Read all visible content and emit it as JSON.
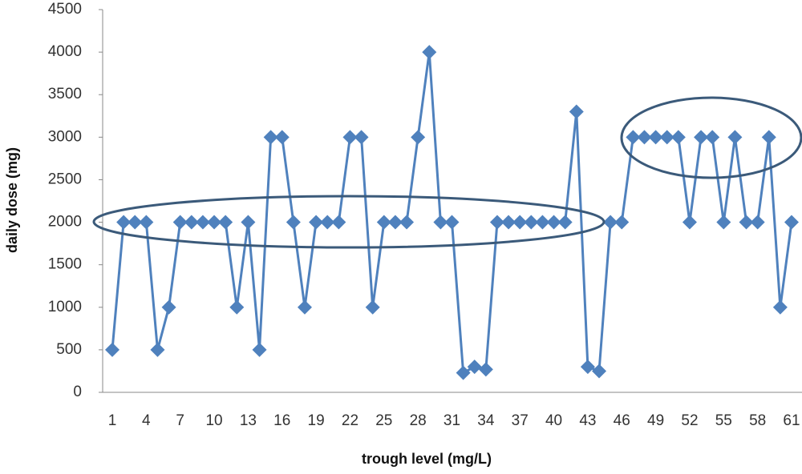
{
  "chart_data": {
    "type": "line",
    "x_label": "trough level (mg/L)",
    "y_label": "daily dose (mg)",
    "categories": [
      "1",
      null,
      null,
      "4",
      null,
      null,
      "7",
      null,
      null,
      "10",
      null,
      null,
      "13",
      null,
      null,
      "16",
      null,
      null,
      "19",
      null,
      null,
      "22",
      null,
      null,
      "25",
      null,
      null,
      "28",
      null,
      null,
      "31",
      null,
      null,
      "34",
      null,
      null,
      "37",
      null,
      null,
      "40",
      null,
      null,
      "43",
      null,
      null,
      "46",
      null,
      null,
      "49",
      null,
      null,
      "52",
      null,
      null,
      "55",
      null,
      null,
      "58",
      null,
      null,
      "61"
    ],
    "values": [
      500,
      2000,
      2000,
      2000,
      500,
      1000,
      2000,
      2000,
      2000,
      2000,
      2000,
      1000,
      2000,
      500,
      3000,
      3000,
      2000,
      1000,
      2000,
      2000,
      2000,
      3000,
      3000,
      1000,
      2000,
      2000,
      2000,
      3000,
      4000,
      2000,
      2000,
      230,
      300,
      270,
      2000,
      2000,
      2000,
      2000,
      2000,
      2000,
      2000,
      3300,
      300,
      250,
      2000,
      2000,
      3000,
      3000,
      3000,
      3000,
      3000,
      2000,
      3000,
      3000,
      2000,
      3000,
      2000,
      2000,
      3000,
      1000,
      2000
    ],
    "color": "#4f81bd",
    "ylim": [
      0,
      4500
    ],
    "yticks": [
      0,
      500,
      1000,
      1500,
      2000,
      2500,
      3000,
      3500,
      4000,
      4500
    ]
  }
}
